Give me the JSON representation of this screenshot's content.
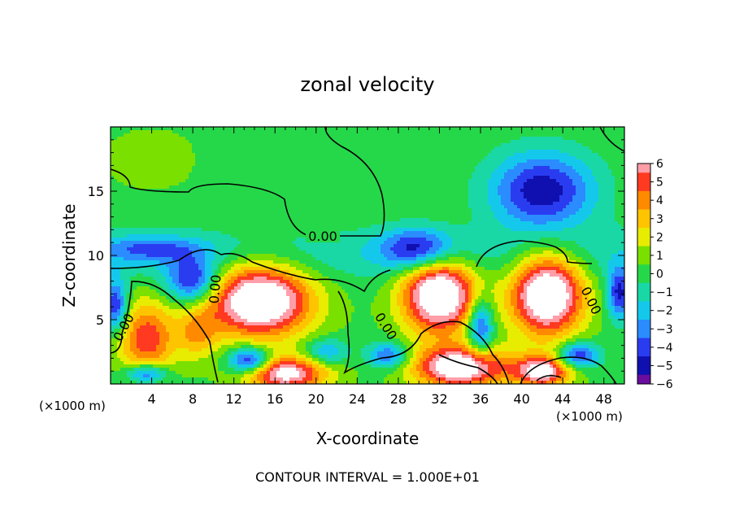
{
  "chart_data": {
    "type": "heatmap",
    "title": "zonal velocity",
    "xlabel": "X-coordinate",
    "ylabel": "Z-coordinate",
    "x_unit_note": "(×1000 m)",
    "z_unit_note": "(×1000 m)",
    "footer": "CONTOUR INTERVAL = 1.000E+01",
    "xlim": [
      0,
      50
    ],
    "ylim": [
      0,
      20
    ],
    "x_ticks": [
      4,
      8,
      12,
      16,
      20,
      24,
      28,
      32,
      36,
      40,
      44,
      48
    ],
    "x_tick_labels": [
      "4",
      "8",
      "12",
      "16",
      "20",
      "24",
      "28",
      "32",
      "36",
      "40",
      "44",
      "48"
    ],
    "y_ticks": [
      5,
      10,
      15
    ],
    "y_tick_labels": [
      "5",
      "10",
      "15"
    ],
    "colorbar": {
      "min": -6,
      "max": 6,
      "ticks": [
        6,
        5,
        4,
        3,
        2,
        1,
        0,
        -1,
        -2,
        -3,
        -4,
        -5,
        -6
      ],
      "tick_labels": [
        "6",
        "5",
        "4",
        "3",
        "2",
        "1",
        "0",
        "−1",
        "−2",
        "−3",
        "−4",
        "−5",
        "−6"
      ]
    },
    "contour_label": "0.00",
    "field_features": [
      {
        "kind": "max",
        "x": 14.5,
        "z": 6.5,
        "value": 9,
        "rx": 5,
        "rz": 2.8
      },
      {
        "kind": "max",
        "x": 32.0,
        "z": 7.0,
        "value": 9,
        "rx": 3.6,
        "rz": 3
      },
      {
        "kind": "max",
        "x": 42.5,
        "z": 7.0,
        "value": 9,
        "rx": 3.5,
        "rz": 3.2
      },
      {
        "kind": "max",
        "x": 34.0,
        "z": 1.3,
        "value": 8,
        "rx": 4.5,
        "rz": 1.6
      },
      {
        "kind": "max",
        "x": 17.0,
        "z": 0.8,
        "value": 7,
        "rx": 4,
        "rz": 1.3
      },
      {
        "kind": "max",
        "x": 3.5,
        "z": 3.5,
        "value": 5,
        "rx": 2.8,
        "rz": 3
      },
      {
        "kind": "max",
        "x": 8.5,
        "z": 4,
        "value": 3,
        "rx": 2,
        "rz": 2
      },
      {
        "kind": "max",
        "x": 42.0,
        "z": 1.0,
        "value": 7,
        "rx": 2.8,
        "rz": 1.2
      },
      {
        "kind": "min",
        "x": 42.0,
        "z": 15.0,
        "value": -5.5,
        "rx": 5,
        "rz": 3
      },
      {
        "kind": "min",
        "x": 30.0,
        "z": 10.5,
        "value": -5,
        "rx": 3.5,
        "rz": 1.6
      },
      {
        "kind": "min",
        "x": 8.0,
        "z": 8.0,
        "value": -5,
        "rx": 2.5,
        "rz": 1.8
      },
      {
        "kind": "min",
        "x": 4.0,
        "z": 10.5,
        "value": -3,
        "rx": 5,
        "rz": 1
      },
      {
        "kind": "min",
        "x": 0.5,
        "z": 6.0,
        "value": -5,
        "rx": 1.2,
        "rz": 2
      },
      {
        "kind": "min",
        "x": 49.5,
        "z": 7.0,
        "value": -5,
        "rx": 1.2,
        "rz": 2
      },
      {
        "kind": "min",
        "x": 13.5,
        "z": 1.8,
        "value": -6,
        "rx": 2,
        "rz": 1
      },
      {
        "kind": "min",
        "x": 21.0,
        "z": 2.5,
        "value": -3,
        "rx": 2,
        "rz": 1
      },
      {
        "kind": "min",
        "x": 27.0,
        "z": 2.2,
        "value": -4,
        "rx": 2,
        "rz": 1
      },
      {
        "kind": "min",
        "x": 45.5,
        "z": 2.2,
        "value": -5,
        "rx": 2,
        "rz": 1
      },
      {
        "kind": "min",
        "x": 3.5,
        "z": 0.8,
        "value": -5,
        "rx": 2,
        "rz": 0.8
      },
      {
        "kind": "min",
        "x": 36.0,
        "z": 4.5,
        "value": -5,
        "rx": 1.2,
        "rz": 2.2
      },
      {
        "kind": "max",
        "x": 4.0,
        "z": 17.5,
        "value": 1.2,
        "rx": 4,
        "rz": 2
      },
      {
        "kind": "min",
        "x": 12.0,
        "z": 17.5,
        "value": -0.3,
        "rx": 4,
        "rz": 1.5
      }
    ],
    "colors": {
      "-6": "#6a0d9f",
      "-5": "#1010b0",
      "-4": "#2a3cf0",
      "-3": "#2a8cff",
      "-2": "#14c8ec",
      "-1": "#19d8a6",
      "0": "#25d84a",
      "1": "#7ae000",
      "2": "#e8ec00",
      "3": "#ffc400",
      "4": "#ff8a00",
      "5": "#ff3a20",
      "6": "#ff9ea8",
      "saturated": "#ffffff"
    }
  }
}
